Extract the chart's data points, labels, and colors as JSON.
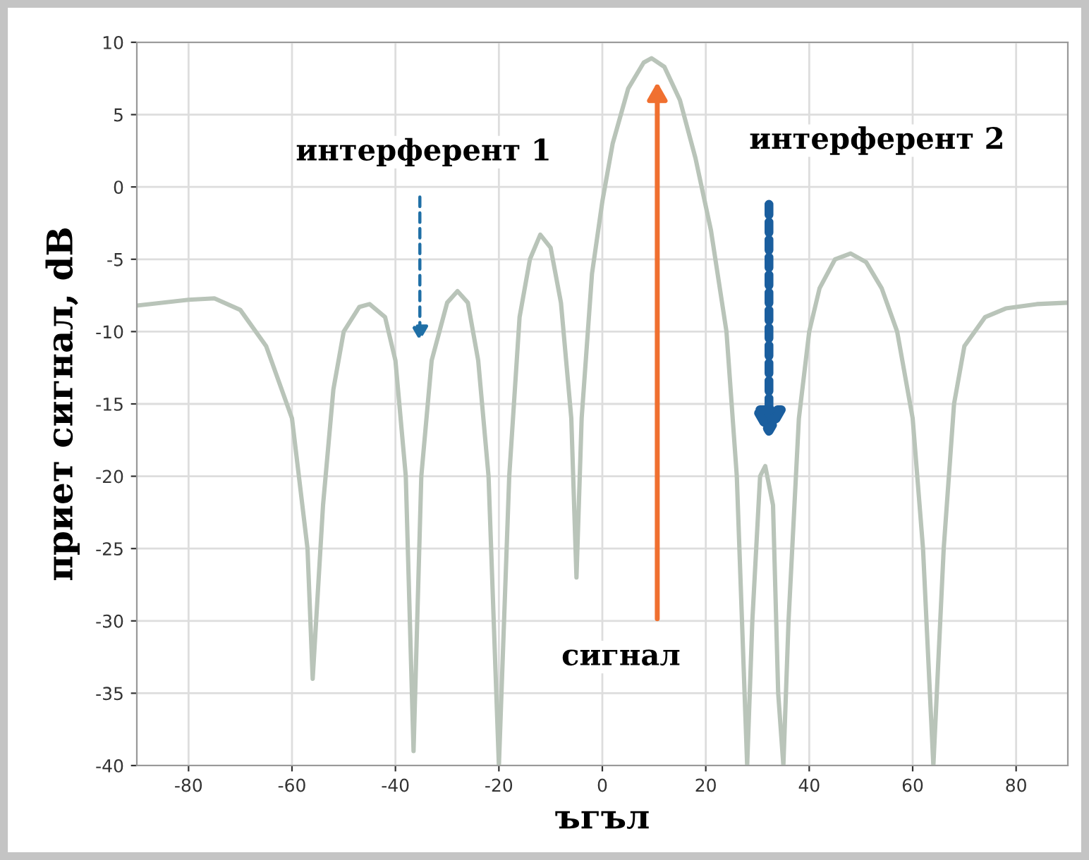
{
  "chart_data": {
    "type": "line",
    "xlabel": "ъгъл",
    "ylabel": "приет сигнал, dB",
    "x": [
      -90,
      -80,
      -75,
      -70,
      -65,
      -60,
      -57,
      -56,
      -54,
      -52,
      -50,
      -47,
      -45,
      -42,
      -40,
      -38,
      -36.5,
      -35,
      -33,
      -30,
      -28,
      -26,
      -24,
      -22,
      -20,
      -18,
      -16,
      -14,
      -12,
      -10,
      -8,
      -6,
      -5,
      -4,
      -2,
      0,
      2,
      5,
      8,
      9.5,
      12,
      15,
      18,
      21,
      24,
      26,
      28,
      29,
      30.5,
      31.5,
      33,
      34,
      35,
      36,
      38,
      40,
      42,
      45,
      48,
      51,
      54,
      57,
      60,
      62,
      64,
      66,
      68,
      70,
      74,
      78,
      84,
      90
    ],
    "series": [
      {
        "color": "#b9c4b9",
        "values": [
          -8.2,
          -7.8,
          -7.7,
          -8.5,
          -11,
          -16,
          -25,
          -34,
          -22,
          -14,
          -10,
          -8.3,
          -8.1,
          -9,
          -12,
          -20,
          -39,
          -20,
          -12,
          -8,
          -7.2,
          -8,
          -12,
          -20,
          -40,
          -20,
          -9,
          -5,
          -3.3,
          -4.2,
          -8,
          -16,
          -27,
          -16,
          -6,
          -1,
          3,
          6.8,
          8.6,
          8.9,
          8.3,
          6,
          2,
          -3,
          -10,
          -20,
          -40,
          -30,
          -20,
          -19.3,
          -22,
          -35,
          -40,
          -30,
          -16,
          -10,
          -7,
          -5,
          -4.6,
          -5.2,
          -7,
          -10,
          -16,
          -25,
          -40,
          -25,
          -15,
          -11,
          -9,
          -8.4,
          -8.1,
          -8
        ]
      }
    ],
    "xlim": [
      -90,
      90
    ],
    "xticks": [
      -80,
      -60,
      -40,
      -20,
      0,
      20,
      40,
      60,
      80
    ],
    "ylim": [
      -40,
      10
    ],
    "yticks": [
      -40,
      -35,
      -30,
      -25,
      -20,
      -15,
      -10,
      -5,
      0,
      5,
      10
    ],
    "grid": true,
    "marker": "none",
    "line_style": "solid",
    "annotations": [
      "интерферент 1",
      "интерферент 2",
      "сигнал"
    ]
  }
}
